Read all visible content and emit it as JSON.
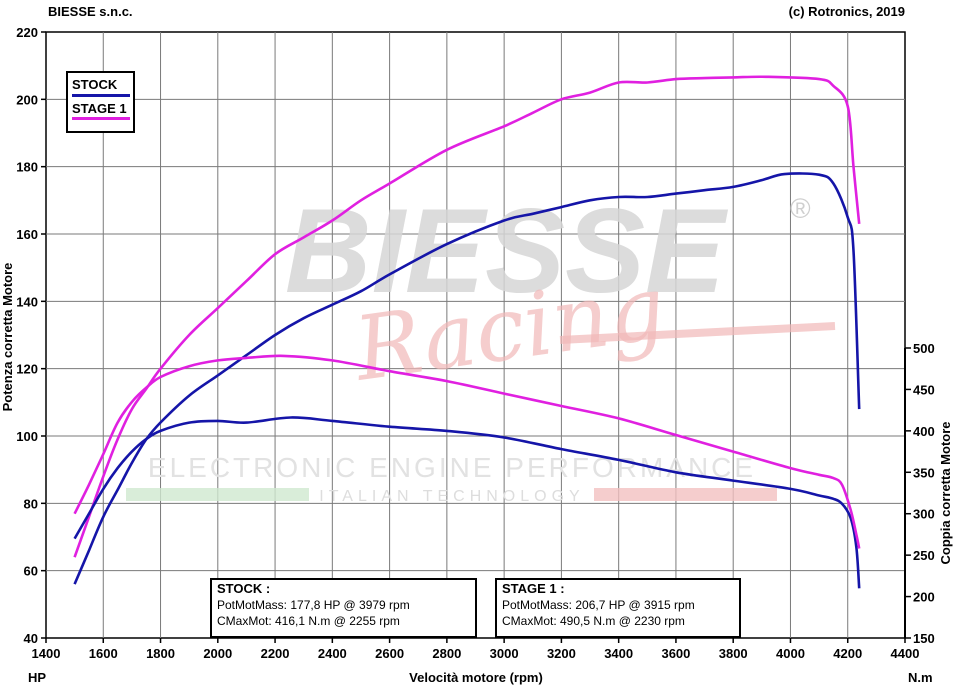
{
  "header": {
    "left": "BIESSE s.n.c.",
    "right": "(c) Rotronics, 2019"
  },
  "colors": {
    "stock": "#1515a8",
    "stage1": "#e020e0",
    "grid": "#7a7a7a"
  },
  "watermark": {
    "brand": "BIESSE",
    "registered": "®",
    "script": "Racing",
    "line1": "ELECTRONIC ENGINE PERFORMANCE",
    "line2": "ITALIAN TECHNOLOGY"
  },
  "legend": [
    {
      "label": "STOCK",
      "color": "#1515a8"
    },
    {
      "label": "STAGE 1",
      "color": "#e020e0"
    }
  ],
  "boxes": {
    "stock": {
      "title": "STOCK :",
      "line1": "PotMotMass: 177,8 HP @ 3979 rpm",
      "line2": "CMaxMot: 416,1 N.m @ 2255 rpm"
    },
    "stage1": {
      "title": "STAGE 1 :",
      "line1": "PotMotMass: 206,7 HP @ 3915 rpm",
      "line2": "CMaxMot: 490,5 N.m @ 2230 rpm"
    }
  },
  "chart_data": {
    "type": "line",
    "xlabel": "Velocità motore (rpm)",
    "ylabel_left": "Potenza corretta Motore",
    "ylabel_right": "Coppia corretta Motore",
    "unit_left": "HP",
    "unit_right": "N.m",
    "xlim": [
      1400,
      4400
    ],
    "ylim_left": [
      40,
      220
    ],
    "ylim_right": [
      150,
      500
    ],
    "x_ticks": [
      "1400",
      "1600",
      "1800",
      "2000",
      "2200",
      "2400",
      "2600",
      "2800",
      "3000",
      "3200",
      "3400",
      "3600",
      "3800",
      "4000",
      "4200",
      "4400"
    ],
    "y_ticks_left": [
      "40",
      "60",
      "80",
      "100",
      "120",
      "140",
      "160",
      "180",
      "200",
      "220"
    ],
    "y_ticks_right": [
      "150",
      "200",
      "250",
      "300",
      "350",
      "400",
      "450",
      "500"
    ],
    "grid": true,
    "legend_position": "top-left",
    "series": [
      {
        "name": "STOCK",
        "quantity": "power",
        "axis": "left",
        "color": "#1515a8",
        "points": [
          [
            1500,
            56
          ],
          [
            1550,
            66
          ],
          [
            1600,
            76
          ],
          [
            1650,
            84
          ],
          [
            1700,
            92
          ],
          [
            1750,
            99
          ],
          [
            1800,
            104
          ],
          [
            1900,
            112
          ],
          [
            2000,
            118
          ],
          [
            2100,
            124
          ],
          [
            2200,
            130
          ],
          [
            2300,
            135
          ],
          [
            2400,
            139
          ],
          [
            2500,
            143
          ],
          [
            2600,
            148
          ],
          [
            2800,
            157
          ],
          [
            3000,
            164
          ],
          [
            3100,
            166
          ],
          [
            3200,
            168
          ],
          [
            3300,
            170
          ],
          [
            3400,
            171
          ],
          [
            3500,
            171
          ],
          [
            3600,
            172
          ],
          [
            3700,
            173
          ],
          [
            3800,
            174
          ],
          [
            3900,
            176
          ],
          [
            3979,
            177.8
          ],
          [
            4100,
            177.6
          ],
          [
            4150,
            175
          ],
          [
            4200,
            165
          ],
          [
            4220,
            155
          ],
          [
            4240,
            108
          ]
        ]
      },
      {
        "name": "STAGE 1",
        "quantity": "power",
        "axis": "left",
        "color": "#e020e0",
        "points": [
          [
            1500,
            64
          ],
          [
            1550,
            76
          ],
          [
            1600,
            88
          ],
          [
            1650,
            99
          ],
          [
            1700,
            108
          ],
          [
            1750,
            114
          ],
          [
            1800,
            120
          ],
          [
            1900,
            130
          ],
          [
            2000,
            138
          ],
          [
            2100,
            146
          ],
          [
            2200,
            154
          ],
          [
            2300,
            159
          ],
          [
            2400,
            164
          ],
          [
            2500,
            170
          ],
          [
            2600,
            175
          ],
          [
            2800,
            185
          ],
          [
            3000,
            192
          ],
          [
            3100,
            196
          ],
          [
            3200,
            200
          ],
          [
            3300,
            202
          ],
          [
            3400,
            205
          ],
          [
            3500,
            205
          ],
          [
            3600,
            206
          ],
          [
            3700,
            206.3
          ],
          [
            3800,
            206.5
          ],
          [
            3915,
            206.7
          ],
          [
            4100,
            206
          ],
          [
            4150,
            204
          ],
          [
            4200,
            198
          ],
          [
            4220,
            180
          ],
          [
            4240,
            163
          ]
        ]
      },
      {
        "name": "STOCK",
        "quantity": "torque",
        "axis": "right",
        "color": "#1515a8",
        "points": [
          [
            1500,
            270
          ],
          [
            1550,
            300
          ],
          [
            1600,
            330
          ],
          [
            1650,
            355
          ],
          [
            1700,
            375
          ],
          [
            1750,
            390
          ],
          [
            1800,
            400
          ],
          [
            1900,
            410
          ],
          [
            2000,
            412
          ],
          [
            2100,
            410
          ],
          [
            2255,
            416.1
          ],
          [
            2400,
            412
          ],
          [
            2600,
            405
          ],
          [
            2800,
            400
          ],
          [
            3000,
            392
          ],
          [
            3200,
            378
          ],
          [
            3400,
            365
          ],
          [
            3600,
            350
          ],
          [
            3800,
            340
          ],
          [
            4000,
            330
          ],
          [
            4100,
            322
          ],
          [
            4150,
            318
          ],
          [
            4180,
            312
          ],
          [
            4210,
            295
          ],
          [
            4230,
            260
          ],
          [
            4240,
            210
          ]
        ]
      },
      {
        "name": "STAGE 1",
        "quantity": "torque",
        "axis": "right",
        "color": "#e020e0",
        "points": [
          [
            1500,
            300
          ],
          [
            1550,
            335
          ],
          [
            1600,
            372
          ],
          [
            1650,
            410
          ],
          [
            1700,
            435
          ],
          [
            1750,
            452
          ],
          [
            1800,
            465
          ],
          [
            1900,
            478
          ],
          [
            2000,
            485
          ],
          [
            2100,
            488
          ],
          [
            2230,
            490.5
          ],
          [
            2400,
            485
          ],
          [
            2600,
            472
          ],
          [
            2800,
            460
          ],
          [
            3000,
            445
          ],
          [
            3200,
            430
          ],
          [
            3400,
            415
          ],
          [
            3600,
            395
          ],
          [
            3800,
            375
          ],
          [
            4000,
            355
          ],
          [
            4100,
            347
          ],
          [
            4150,
            343
          ],
          [
            4180,
            335
          ],
          [
            4210,
            305
          ],
          [
            4230,
            275
          ],
          [
            4240,
            258
          ]
        ]
      }
    ]
  }
}
